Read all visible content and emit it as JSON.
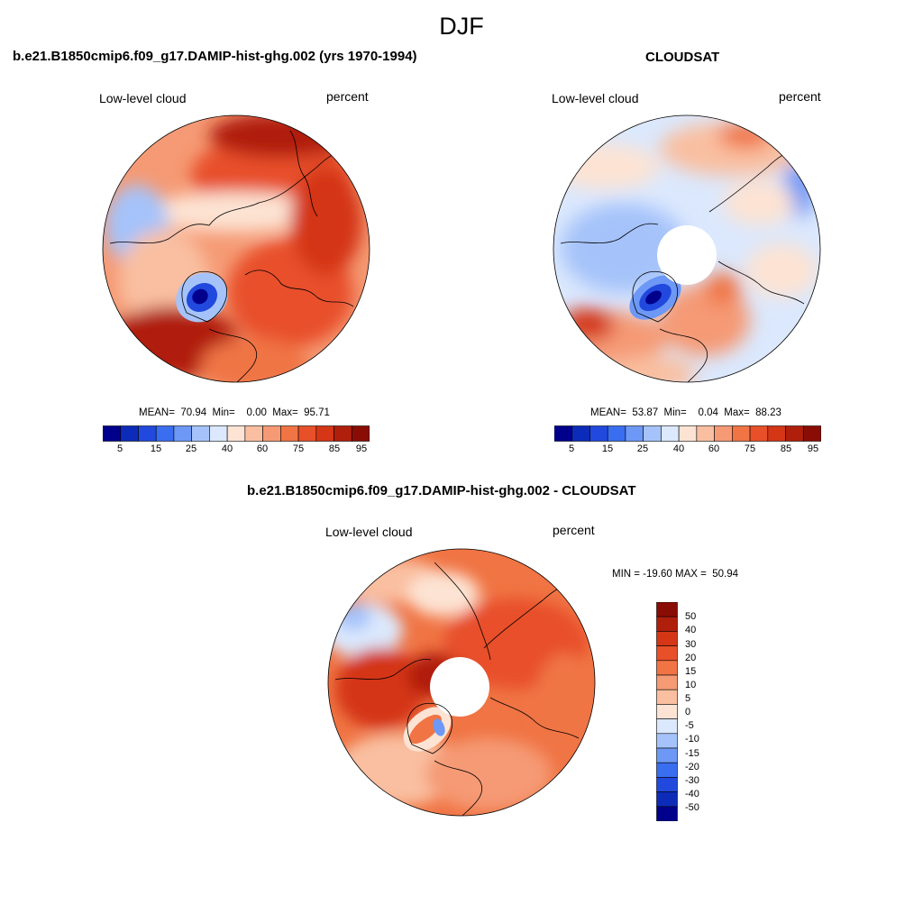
{
  "title": "DJF",
  "panels": [
    {
      "id": "model",
      "title": "b.e21.B1850cmip6.f09_g17.DAMIP-hist-ghg.002 (yrs 1970-1994)",
      "left_label": "Low-level cloud",
      "right_label": "percent",
      "stats": "MEAN=  70.94  Min=    0.00  Max=  95.71",
      "colorbar_labels": [
        "5",
        "15",
        "25",
        "40",
        "60",
        "75",
        "85",
        "95"
      ],
      "has_polar_hole": false
    },
    {
      "id": "cloudsat",
      "title": "CLOUDSAT",
      "left_label": "Low-level cloud",
      "right_label": "percent",
      "stats": "MEAN=  53.87  Min=    0.04  Max=  88.23",
      "colorbar_labels": [
        "5",
        "15",
        "25",
        "40",
        "60",
        "75",
        "85",
        "95"
      ],
      "has_polar_hole": true
    },
    {
      "id": "difference",
      "title": "b.e21.B1850cmip6.f09_g17.DAMIP-hist-ghg.002 - CLOUDSAT",
      "left_label": "Low-level cloud",
      "right_label": "percent",
      "stats": "MIN = -19.60 MAX =  50.94",
      "colorbar_labels": [
        "50",
        "40",
        "30",
        "20",
        "15",
        "10",
        "5",
        "0",
        "-5",
        "-10",
        "-15",
        "-20",
        "-30",
        "-40",
        "-50"
      ],
      "has_polar_hole": true
    }
  ],
  "colors": {
    "seq_scale": [
      "#00008c",
      "#0c2bb8",
      "#2149de",
      "#3a6ef0",
      "#6d98f6",
      "#a5c3fa",
      "#dbe8fd",
      "#fde3d3",
      "#f9bfa0",
      "#f59a74",
      "#f07444",
      "#e8502a",
      "#d43616",
      "#b01f0c",
      "#8a0d05"
    ],
    "diff_scale": [
      "#8a0d05",
      "#b01f0c",
      "#d43616",
      "#e8502a",
      "#f07444",
      "#f59a74",
      "#f9bfa0",
      "#fde3d3",
      "#dbe8fd",
      "#a5c3fa",
      "#6d98f6",
      "#3a6ef0",
      "#2149de",
      "#0c2bb8",
      "#00008c"
    ]
  }
}
